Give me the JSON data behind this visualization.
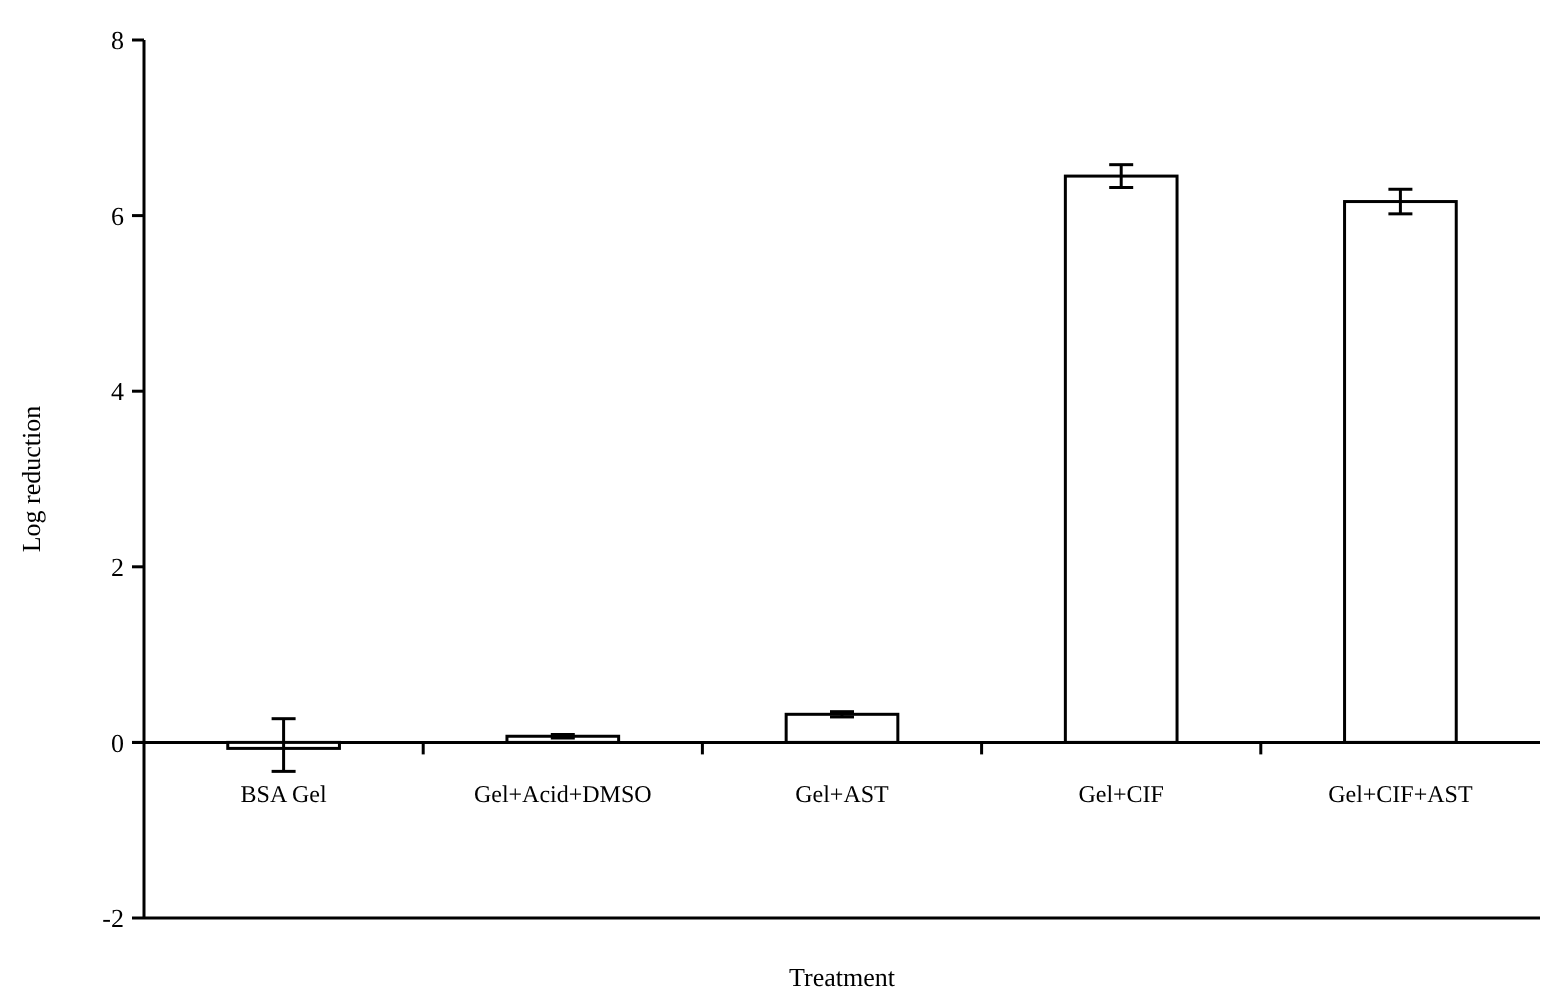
{
  "chart_data": {
    "type": "bar",
    "xlabel": "Treatment",
    "ylabel": "Log reduction",
    "categories": [
      "BSA Gel",
      "Gel+Acid+DMSO",
      "Gel+AST",
      "Gel+CIF",
      "Gel+CIF+AST"
    ],
    "values": [
      -0.03,
      0.07,
      0.32,
      6.45,
      6.16
    ],
    "errors": [
      0.3,
      0.02,
      0.03,
      0.13,
      0.14
    ],
    "color": "#ffffff",
    "ylim": [
      -2,
      8
    ],
    "yticks": [
      -2,
      0,
      2,
      4,
      6,
      8
    ],
    "grid": false
  }
}
